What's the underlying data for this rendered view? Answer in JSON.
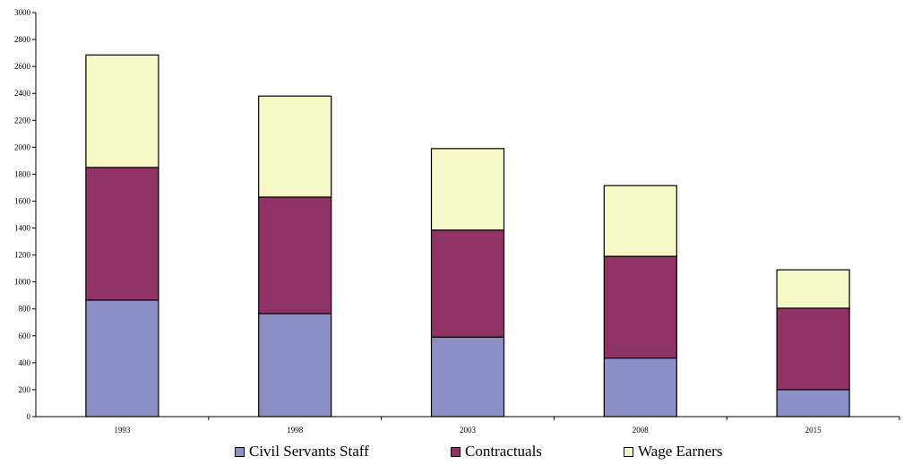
{
  "chart_data": {
    "type": "bar",
    "stacked": true,
    "categories": [
      "1993",
      "1998",
      "2003",
      "2008",
      "2015"
    ],
    "series": [
      {
        "name": "Civil Servants Staff",
        "values": [
          865,
          765,
          590,
          435,
          200
        ],
        "color": "#8b8fc6"
      },
      {
        "name": "Contractuals",
        "values": [
          985,
          865,
          795,
          755,
          605
        ],
        "color": "#923366"
      },
      {
        "name": "Wage Earners",
        "values": [
          835,
          750,
          605,
          525,
          285
        ],
        "color": "#f7f7c7"
      }
    ],
    "title": "",
    "xlabel": "",
    "ylabel": "",
    "ylim": [
      0,
      3000
    ],
    "yticks": [
      "0",
      "200",
      "400",
      "600",
      "800",
      "1000",
      "1200",
      "1400",
      "1600",
      "1800",
      "2000",
      "2200",
      "2400",
      "2600",
      "2800",
      "3000"
    ],
    "grid": false,
    "legend_position": "bottom"
  }
}
